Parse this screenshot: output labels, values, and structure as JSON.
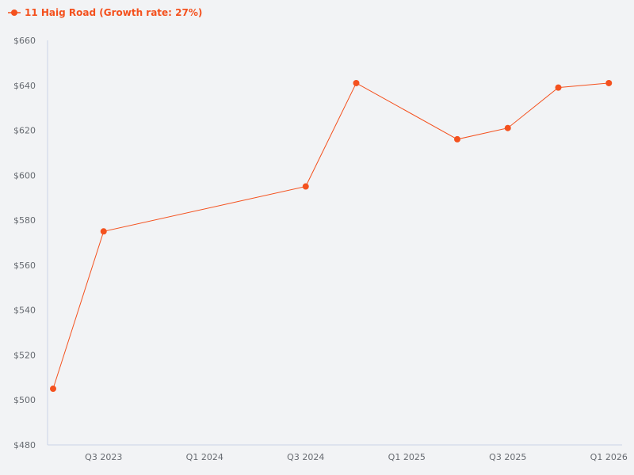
{
  "legend": {
    "label": "11 Haig Road (Growth rate: 27%)",
    "color": "#f4511e"
  },
  "axes": {
    "axis_color": "#c9d3e6",
    "y_ticks": [
      "$660",
      "$640",
      "$620",
      "$600",
      "$580",
      "$560",
      "$540",
      "$520",
      "$500",
      "$480"
    ],
    "x_ticks": [
      "Q3 2023",
      "Q1 2024",
      "Q3 2024",
      "Q1 2025",
      "Q3 2025",
      "Q1 2026"
    ]
  },
  "chart_data": {
    "type": "line",
    "title": "",
    "xlabel": "",
    "ylabel": "",
    "ylim": [
      480,
      660
    ],
    "y_tick_values": [
      480,
      500,
      520,
      540,
      560,
      580,
      600,
      620,
      640,
      660
    ],
    "x_tick_labels": [
      "Q3 2023",
      "Q1 2024",
      "Q3 2024",
      "Q1 2025",
      "Q3 2025",
      "Q1 2026"
    ],
    "grid": false,
    "legend_position": "top-left",
    "series": [
      {
        "name": "11 Haig Road (Growth rate: 27%)",
        "color": "#f4511e",
        "x": [
          "Q2 2023",
          "Q3 2023",
          "Q3 2024",
          "Q4 2024",
          "Q2 2025",
          "Q3 2025",
          "Q4 2025",
          "Q1 2026"
        ],
        "values": [
          505,
          575,
          595,
          641,
          616,
          621,
          639,
          641
        ]
      }
    ]
  }
}
